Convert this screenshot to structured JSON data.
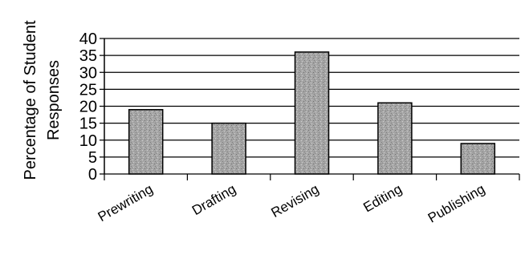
{
  "chart_data": {
    "type": "bar",
    "title": "",
    "xlabel": "",
    "ylabel_line1": "Percentage of Student",
    "ylabel_line2": "Responses",
    "categories": [
      "Prewriting",
      "Drafting",
      "Revising",
      "Editing",
      "Publishing"
    ],
    "values": [
      19,
      15,
      36,
      21,
      9
    ],
    "ylim": [
      0,
      40
    ],
    "yticks": [
      0,
      5,
      10,
      15,
      20,
      25,
      30,
      35,
      40
    ],
    "grid": true,
    "legend": "none",
    "colors": {
      "bar_fill": "#a8a8a8",
      "bar_stroke": "#000000",
      "grid": "#000000"
    }
  }
}
